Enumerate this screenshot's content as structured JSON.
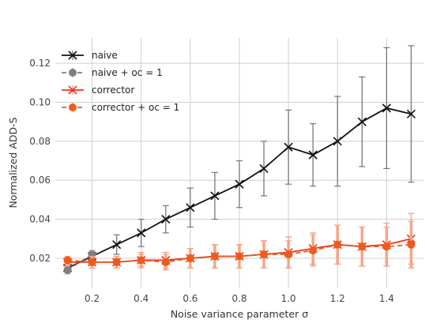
{
  "chart_data": {
    "type": "line",
    "xlabel": "Noise variance parameter σ",
    "ylabel": "Normalized ADD-S",
    "xlim": [
      0.05,
      1.55
    ],
    "ylim": [
      0.005,
      0.133
    ],
    "xticks": [
      0.2,
      0.4,
      0.6,
      0.8,
      1.0,
      1.2,
      1.4
    ],
    "xtick_labels": [
      "0.2",
      "0.4",
      "0.6",
      "0.8",
      "1.0",
      "1.2",
      "1.4"
    ],
    "yticks": [
      0.02,
      0.04,
      0.06,
      0.08,
      0.1,
      0.12
    ],
    "ytick_labels": [
      "0.02",
      "0.04",
      "0.06",
      "0.08",
      "0.10",
      "0.12"
    ],
    "grid": true,
    "legend_position": "top-left",
    "series": [
      {
        "name": "naive",
        "color": "#111111",
        "error_color": "#777777",
        "marker": "x",
        "line": "solid",
        "x": [
          0.1,
          0.2,
          0.3,
          0.4,
          0.5,
          0.6,
          0.7,
          0.8,
          0.9,
          1.0,
          1.1,
          1.2,
          1.3,
          1.4,
          1.5
        ],
        "y": [
          0.015,
          0.021,
          0.027,
          0.033,
          0.04,
          0.046,
          0.052,
          0.058,
          0.066,
          0.077,
          0.073,
          0.08,
          0.09,
          0.097,
          0.094
        ],
        "err": [
          0.002,
          0.003,
          0.005,
          0.007,
          0.007,
          0.01,
          0.012,
          0.012,
          0.014,
          0.019,
          0.016,
          0.023,
          0.023,
          0.031,
          0.035
        ]
      },
      {
        "name": "naive + oc = 1",
        "color": "#7f7f7f",
        "error_color": "#aaaaaa",
        "marker": "o",
        "line": "dashed",
        "x": [
          0.1,
          0.2
        ],
        "y": [
          0.014,
          0.022
        ],
        "err": [
          0.002,
          0.002
        ]
      },
      {
        "name": "corrector",
        "color": "#e8371e",
        "error_color": "#f19a85",
        "marker": "x",
        "line": "solid",
        "x": [
          0.1,
          0.2,
          0.3,
          0.4,
          0.5,
          0.6,
          0.7,
          0.8,
          0.9,
          1.0,
          1.1,
          1.2,
          1.3,
          1.4,
          1.5
        ],
        "y": [
          0.018,
          0.018,
          0.018,
          0.019,
          0.019,
          0.02,
          0.021,
          0.021,
          0.022,
          0.023,
          0.025,
          0.027,
          0.026,
          0.027,
          0.03
        ],
        "err": [
          0.002,
          0.003,
          0.003,
          0.003,
          0.004,
          0.005,
          0.006,
          0.006,
          0.007,
          0.008,
          0.008,
          0.01,
          0.01,
          0.011,
          0.013
        ]
      },
      {
        "name": "corrector + oc = 1",
        "color": "#f05a1a",
        "error_color": "#f6a585",
        "marker": "o",
        "line": "dashed",
        "x": [
          0.1,
          0.2,
          0.3,
          0.4,
          0.5,
          0.6,
          0.7,
          0.8,
          0.9,
          1.0,
          1.1,
          1.2,
          1.3,
          1.4,
          1.5
        ],
        "y": [
          0.019,
          0.018,
          0.018,
          0.019,
          0.018,
          0.02,
          0.021,
          0.021,
          0.022,
          0.022,
          0.024,
          0.027,
          0.026,
          0.026,
          0.027
        ],
        "err": [
          0.002,
          0.003,
          0.003,
          0.004,
          0.004,
          0.005,
          0.006,
          0.006,
          0.007,
          0.007,
          0.008,
          0.01,
          0.01,
          0.01,
          0.012
        ]
      }
    ]
  }
}
